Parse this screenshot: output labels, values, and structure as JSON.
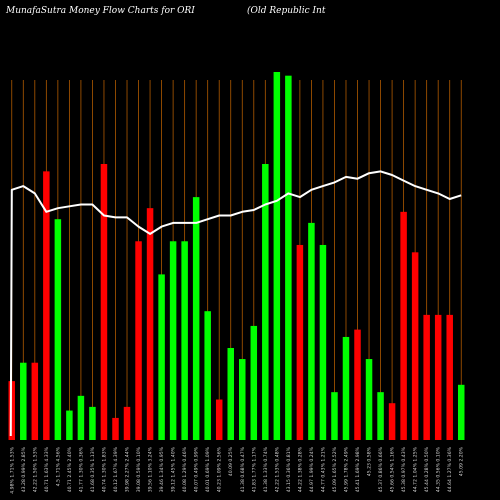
{
  "header": {
    "left": "MunafaSutra  Money Flow  Charts for ORI",
    "right": "(Old Republic Int"
  },
  "colors": {
    "background": "#000000",
    "up": "#00ff00",
    "down": "#ff0000",
    "grid": "#b05a00",
    "line": "#ffffff"
  },
  "chart_data": {
    "type": "bar",
    "title": "MunafaSutra  Money Flow  Charts for ORI",
    "subtitle": "(Old Republic Int",
    "grid": true,
    "ylim": [
      0,
      100
    ],
    "bars": [
      {
        "value": 16,
        "color": "red"
      },
      {
        "value": 21,
        "color": "green"
      },
      {
        "value": 21,
        "color": "red"
      },
      {
        "value": 73,
        "color": "red"
      },
      {
        "value": 60,
        "color": "green"
      },
      {
        "value": 8,
        "color": "green"
      },
      {
        "value": 12,
        "color": "green"
      },
      {
        "value": 9,
        "color": "green"
      },
      {
        "value": 75,
        "color": "red"
      },
      {
        "value": 6,
        "color": "red"
      },
      {
        "value": 9,
        "color": "red"
      },
      {
        "value": 54,
        "color": "red"
      },
      {
        "value": 63,
        "color": "red"
      },
      {
        "value": 45,
        "color": "green"
      },
      {
        "value": 54,
        "color": "green"
      },
      {
        "value": 54,
        "color": "green"
      },
      {
        "value": 66,
        "color": "green"
      },
      {
        "value": 35,
        "color": "green"
      },
      {
        "value": 11,
        "color": "red"
      },
      {
        "value": 25,
        "color": "green"
      },
      {
        "value": 22,
        "color": "green"
      },
      {
        "value": 31,
        "color": "green"
      },
      {
        "value": 75,
        "color": "green"
      },
      {
        "value": 100,
        "color": "green"
      },
      {
        "value": 99,
        "color": "green"
      },
      {
        "value": 53,
        "color": "red"
      },
      {
        "value": 59,
        "color": "green"
      },
      {
        "value": 53,
        "color": "green"
      },
      {
        "value": 13,
        "color": "green"
      },
      {
        "value": 28,
        "color": "green"
      },
      {
        "value": 30,
        "color": "red"
      },
      {
        "value": 22,
        "color": "green"
      },
      {
        "value": 13,
        "color": "green"
      },
      {
        "value": 10,
        "color": "red"
      },
      {
        "value": 62,
        "color": "red"
      },
      {
        "value": 51,
        "color": "red"
      },
      {
        "value": 34,
        "color": "red"
      },
      {
        "value": 34,
        "color": "red"
      },
      {
        "value": 34,
        "color": "red"
      },
      {
        "value": 15,
        "color": "green"
      }
    ],
    "line": [
      68,
      69,
      67,
      62,
      63,
      63.5,
      64,
      64,
      61,
      60.5,
      60.5,
      58,
      56,
      58,
      59,
      59,
      59,
      60,
      61,
      61,
      62,
      62.5,
      64,
      65,
      67,
      66,
      68,
      69,
      70,
      71.5,
      71,
      72.5,
      73,
      72,
      70.5,
      69,
      68,
      67,
      65.5,
      66.5
    ],
    "xlabels": [
      "4.98% 1.71% 1.53%",
      "43.28 0.99% 2.85%",
      "42.22 1.50% 1.53%",
      "40.71 1.63% 4.33%",
      "4.5 1.71% 4.56%",
      "40.71 2.45% 2.40%",
      "41.77 1.30% 0.36%",
      "41.68 0.35% 1.13%",
      "40.74 1.30% 1.83%",
      "40.12 1.67% 4.39%",
      "39.98 2.27% 2.44%",
      "39.08 0.59% 0.10%",
      "39.56 1.10% 3.24%",
      "39.46 1.34% 0.95%",
      "39.12 1.45% 1.40%",
      "40.08 1.29% 0.46%",
      "40.07 0.49% 0.99%",
      "40.01 0.69% 1.09%",
      "40.23 1.09% 2.56%",
      "40.09 0.25%",
      "41.38 0.68% 0.47%",
      "41.83 1.77% 1.17%",
      "41.38 1.33% 0.74%",
      "42.22 1.53% 0.48%",
      "43.15 0.36% 0.81%",
      "44.22 1.38% 0.28%",
      "44.97 1.99% 0.24%",
      "44.77 0.43% 1.21%",
      "45.09 1.65% 2.52%",
      "45.99 1.78% 2.49%",
      "45.41 1.69% 2.98%",
      "45.23 0.58%",
      "45.37 0.86% 0.66%",
      "45.66 0.54% 1.16%",
      "45.38 0.97% 0.43%",
      "44.72 1.04% 1.25%",
      "45.44 0.28% 0.50%",
      "44.35 0.56% 0.10%",
      "44.64 1.27% 0.36%",
      "45.09 2.20%"
    ]
  }
}
